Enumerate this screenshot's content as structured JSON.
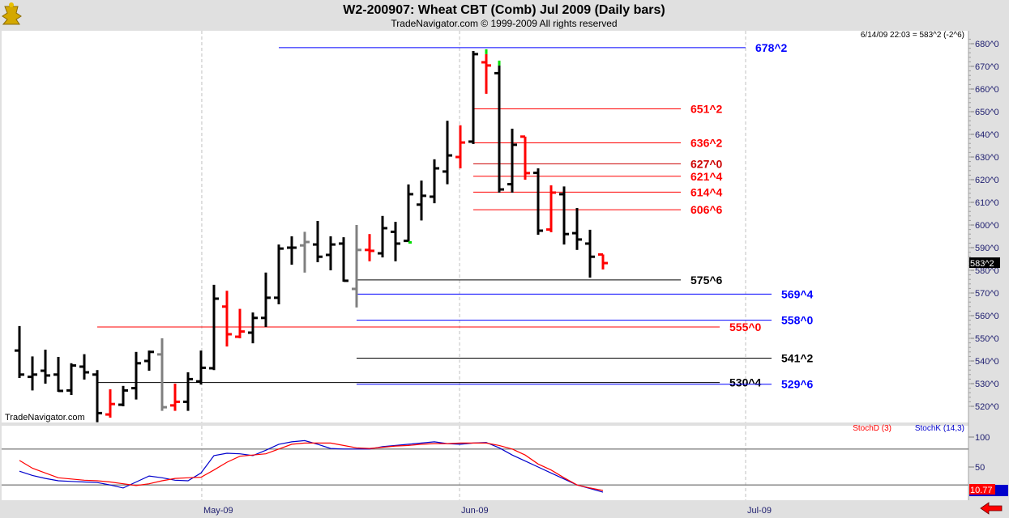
{
  "header": {
    "title": "W2-200907:  Wheat CBT (Comb) Jul 2009  (Daily bars)",
    "subtitle": "TradeNavigator.com © 1999-2009 All rights reserved",
    "status": "6/14/09 22:03 = 583^2 (-2^6)",
    "watermark": "TradeNavigator.com",
    "logo": "gold-trophy-logo"
  },
  "colors": {
    "up": "#000000",
    "down": "#ff0000",
    "neutral": "#808080",
    "mark": "#00dd00",
    "axis_text": "#202070",
    "stochD": "#ff0000",
    "stochK": "#0000cc"
  },
  "chart_data": [
    {
      "type": "ohlc",
      "title": "W2-200907: Wheat CBT (Comb) Jul 2009 (Daily bars)",
      "ylim": [
        513,
        683
      ],
      "yticks": [
        "680^0",
        "670^0",
        "660^0",
        "650^0",
        "640^0",
        "630^0",
        "620^0",
        "610^0",
        "600^0",
        "590^0",
        "580^0",
        "570^0",
        "560^0",
        "550^0",
        "540^0",
        "530^0",
        "520^0"
      ],
      "ytick_values": [
        680,
        670,
        660,
        650,
        640,
        630,
        620,
        610,
        600,
        590,
        580,
        570,
        560,
        550,
        540,
        530,
        520
      ],
      "xticks": [
        {
          "label": "May-09",
          "bar": 15.06
        },
        {
          "label": "Jun-09",
          "bar": 34.94
        },
        {
          "label": "Jul-09",
          "bar": 57
        }
      ],
      "last_price_label": "583^2",
      "bars": [
        {
          "o": 544.6,
          "h": 555.4,
          "l": 532.5,
          "c": 534,
          "col": "k"
        },
        {
          "o": 533,
          "h": 542,
          "l": 527,
          "c": 534,
          "col": "k"
        },
        {
          "o": 535.7,
          "h": 545,
          "l": 530,
          "c": 533.6,
          "col": "k"
        },
        {
          "o": 534,
          "h": 541.8,
          "l": 526.4,
          "c": 526.8,
          "col": "k"
        },
        {
          "o": 527,
          "h": 539,
          "l": 525,
          "c": 538,
          "col": "k"
        },
        {
          "o": 537.5,
          "h": 543,
          "l": 531.8,
          "c": 535,
          "col": "k"
        },
        {
          "o": 534,
          "h": 536,
          "l": 513,
          "c": 517,
          "col": "k"
        },
        {
          "o": 516.4,
          "h": 527.5,
          "l": 515,
          "c": 521,
          "col": "r"
        },
        {
          "o": 520.7,
          "h": 529,
          "l": 520,
          "c": 527,
          "col": "k"
        },
        {
          "o": 528,
          "h": 544,
          "l": 523,
          "c": 539,
          "col": "k"
        },
        {
          "o": 540,
          "h": 544.6,
          "l": 535.7,
          "c": 544,
          "col": "k"
        },
        {
          "o": 542.9,
          "h": 550,
          "l": 518,
          "c": 519.6,
          "col": "g"
        },
        {
          "o": 520.4,
          "h": 530,
          "l": 518,
          "c": 522,
          "col": "r"
        },
        {
          "o": 522,
          "h": 535,
          "l": 518,
          "c": 532,
          "col": "k"
        },
        {
          "o": 531,
          "h": 544.6,
          "l": 529.6,
          "c": 537,
          "col": "k"
        },
        {
          "o": 536.8,
          "h": 573.6,
          "l": 536,
          "c": 567.5,
          "col": "k"
        },
        {
          "o": 564,
          "h": 571,
          "l": 546.4,
          "c": 551.8,
          "col": "r"
        },
        {
          "o": 550.7,
          "h": 563,
          "l": 550,
          "c": 553,
          "col": "r"
        },
        {
          "o": 552.5,
          "h": 561.4,
          "l": 547.8,
          "c": 559,
          "col": "k"
        },
        {
          "o": 559,
          "h": 579,
          "l": 555,
          "c": 567.9,
          "col": "k"
        },
        {
          "o": 567.9,
          "h": 591.4,
          "l": 565,
          "c": 589.6,
          "col": "k"
        },
        {
          "o": 590,
          "h": 595,
          "l": 582.5,
          "c": 590,
          "col": "k"
        },
        {
          "o": 591,
          "h": 597,
          "l": 579,
          "c": 592.5,
          "col": "g"
        },
        {
          "o": 591.4,
          "h": 601.8,
          "l": 583.6,
          "c": 586,
          "col": "k"
        },
        {
          "o": 586.8,
          "h": 595,
          "l": 580,
          "c": 591.4,
          "col": "k"
        },
        {
          "o": 591.8,
          "h": 594.6,
          "l": 575,
          "c": 575.4,
          "col": "k"
        },
        {
          "o": 571.8,
          "h": 600,
          "l": 563.6,
          "c": 589,
          "col": "g"
        },
        {
          "o": 589,
          "h": 596,
          "l": 584,
          "c": 588.6,
          "col": "r"
        },
        {
          "o": 587.5,
          "h": 604,
          "l": 585.7,
          "c": 598.6,
          "col": "k"
        },
        {
          "o": 597,
          "h": 601.4,
          "l": 584,
          "c": 591.8,
          "col": "k"
        },
        {
          "o": 593,
          "h": 617.9,
          "l": 592.5,
          "c": 613.6,
          "col": "k",
          "mark": "low"
        },
        {
          "o": 609,
          "h": 619.6,
          "l": 602,
          "c": 612.9,
          "col": "k"
        },
        {
          "o": 612.5,
          "h": 629,
          "l": 609.6,
          "c": 625,
          "col": "k"
        },
        {
          "o": 623.6,
          "h": 646,
          "l": 618,
          "c": 630.7,
          "col": "k"
        },
        {
          "o": 630,
          "h": 644,
          "l": 625,
          "c": 636.4,
          "col": "r"
        },
        {
          "o": 636.8,
          "h": 676.8,
          "l": 635.7,
          "c": 675.4,
          "col": "k"
        },
        {
          "o": 671.8,
          "h": 675.4,
          "l": 657.9,
          "c": 670.4,
          "col": "r",
          "mark": "high"
        },
        {
          "o": 667,
          "h": 670.4,
          "l": 614.3,
          "c": 615.7,
          "col": "k",
          "mark": "high"
        },
        {
          "o": 618,
          "h": 642.5,
          "l": 614.3,
          "c": 635.4,
          "col": "k"
        },
        {
          "o": 639,
          "h": 639,
          "l": 620,
          "c": 622.9,
          "col": "r"
        },
        {
          "o": 623,
          "h": 625,
          "l": 595.7,
          "c": 597.5,
          "col": "k"
        },
        {
          "o": 598,
          "h": 617.5,
          "l": 596.8,
          "c": 614.3,
          "col": "r"
        },
        {
          "o": 613.6,
          "h": 617,
          "l": 591.4,
          "c": 596,
          "col": "k"
        },
        {
          "o": 596.4,
          "h": 607.5,
          "l": 589,
          "c": 593.6,
          "col": "k"
        },
        {
          "o": 591.8,
          "h": 597.9,
          "l": 576.8,
          "c": 586,
          "col": "k"
        },
        {
          "o": 587,
          "h": 587,
          "l": 580.4,
          "c": 583.2,
          "col": "r"
        }
      ],
      "levels": [
        {
          "label": "678^2",
          "price": 678.25,
          "color": "#0000ff",
          "from_bar": 21,
          "to_bar": 57
        },
        {
          "label": "651^2",
          "price": 651.25,
          "color": "#ff0000",
          "from_bar": 36,
          "to_bar": 52
        },
        {
          "label": "636^2",
          "price": 636.25,
          "color": "#ff0000",
          "from_bar": 36,
          "to_bar": 52
        },
        {
          "label": "627^0",
          "price": 627.0,
          "color": "#cc0000",
          "from_bar": 36,
          "to_bar": 52
        },
        {
          "label": "621^4",
          "price": 621.5,
          "color": "#ff0000",
          "from_bar": 36,
          "to_bar": 52
        },
        {
          "label": "614^4",
          "price": 614.5,
          "color": "#ff0000",
          "from_bar": 36,
          "to_bar": 52
        },
        {
          "label": "606^6",
          "price": 606.75,
          "color": "#ff0000",
          "from_bar": 36,
          "to_bar": 52
        },
        {
          "label": "575^6",
          "price": 575.75,
          "color": "#000000",
          "from_bar": 27,
          "to_bar": 52
        },
        {
          "label": "569^4",
          "price": 569.5,
          "color": "#0000ff",
          "from_bar": 27,
          "to_bar": 59
        },
        {
          "label": "558^0",
          "price": 558.0,
          "color": "#0000ff",
          "from_bar": 27,
          "to_bar": 59
        },
        {
          "label": "555^0",
          "price": 555.0,
          "color": "#ff0000",
          "from_bar": 7,
          "to_bar": 55
        },
        {
          "label": "541^2",
          "price": 541.25,
          "color": "#000000",
          "from_bar": 27,
          "to_bar": 59
        },
        {
          "label": "530^4",
          "price": 530.5,
          "color": "#000000",
          "from_bar": 7,
          "to_bar": 55
        },
        {
          "label": "529^6",
          "price": 529.75,
          "color": "#0000ff",
          "from_bar": 27,
          "to_bar": 59
        }
      ]
    },
    {
      "type": "line",
      "title": "Stochastic",
      "ylim": [
        0,
        100
      ],
      "yticks": [
        "100",
        "50"
      ],
      "ytick_values": [
        100,
        50
      ],
      "hlines": [
        80,
        20
      ],
      "legend": [
        "StochD (3)",
        "StochK (14,3)"
      ],
      "legend_position": "top-right",
      "last_value_label": "10.77",
      "series": [
        {
          "name": "StochD (3)",
          "color": "#ff0000",
          "values": [
            61,
            48,
            40,
            32,
            30,
            28,
            27,
            25,
            22,
            19,
            22,
            27,
            31,
            32,
            33,
            45,
            58,
            68,
            70,
            72,
            80,
            88,
            90,
            90,
            90,
            86,
            82,
            81,
            83,
            85,
            86,
            88,
            89,
            89,
            90,
            90,
            90,
            86,
            80,
            70,
            55,
            45,
            32,
            20,
            15,
            10.77
          ]
        },
        {
          "name": "StochK (14,3)",
          "color": "#0000cc",
          "values": [
            43,
            36,
            31,
            27,
            26,
            25,
            24,
            20,
            15,
            25,
            35,
            32,
            28,
            27,
            40,
            69,
            73,
            72,
            69,
            78,
            88,
            92,
            94,
            88,
            81,
            80,
            80,
            80,
            84,
            86,
            88,
            90,
            92,
            89,
            88,
            90,
            91,
            82,
            70,
            60,
            50,
            40,
            30,
            20,
            14,
            8
          ]
        }
      ]
    }
  ]
}
